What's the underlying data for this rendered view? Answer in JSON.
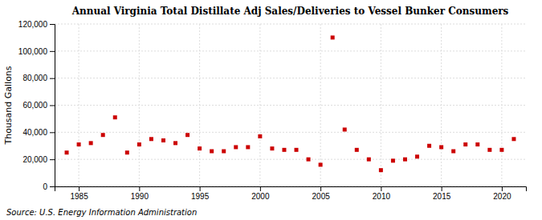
{
  "chart_data": {
    "type": "scatter",
    "title": "Annual Virginia Total Distillate Adj Sales/Deliveries to Vessel Bunker Consumers",
    "y_label": "Thousand Gallons",
    "source": "Source: U.S. Energy Information Administration",
    "color": "#cc0000",
    "marker": "square",
    "grid": true,
    "x": [
      1984,
      1985,
      1986,
      1987,
      1988,
      1989,
      1990,
      1991,
      1992,
      1993,
      1994,
      1995,
      1996,
      1997,
      1998,
      1999,
      2000,
      2001,
      2002,
      2003,
      2004,
      2005,
      2006,
      2007,
      2008,
      2009,
      2010,
      2011,
      2012,
      2013,
      2014,
      2015,
      2016,
      2017,
      2018,
      2019,
      2020,
      2021
    ],
    "values": [
      25000,
      31000,
      32000,
      38000,
      51000,
      25000,
      31000,
      35000,
      34000,
      32000,
      38000,
      28000,
      26000,
      26000,
      29000,
      29000,
      37000,
      28000,
      27000,
      27000,
      20000,
      16000,
      110000,
      42000,
      27000,
      20000,
      12000,
      19000,
      20000,
      22000,
      30000,
      29000,
      26000,
      31000,
      31000,
      27000,
      27000,
      35000
    ],
    "xlim": [
      1983,
      2022
    ],
    "xticks": [
      1985,
      1990,
      1995,
      2000,
      2005,
      2010,
      2015,
      2020
    ],
    "ylim": [
      0,
      120000
    ],
    "yticks": [
      0,
      {
        "value": 20000,
        "label": "20,000"
      },
      {
        "value": 40000,
        "label": "40,000"
      },
      {
        "value": 60000,
        "label": "60,000"
      },
      {
        "value": 80000,
        "label": "80,000"
      },
      {
        "value": 100000,
        "label": "100,000"
      },
      {
        "value": 120000,
        "label": "120,000"
      }
    ]
  }
}
